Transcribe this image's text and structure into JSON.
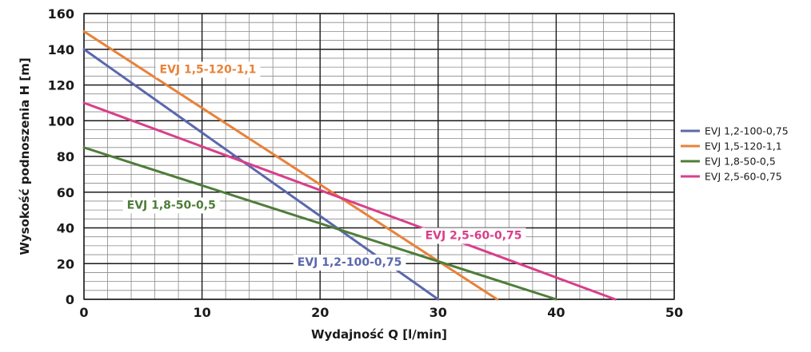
{
  "chart_data": {
    "type": "line",
    "title": "",
    "xlabel": "Wydajność Q [l/min]",
    "ylabel": "Wysokość podnoszenia H [m]",
    "xlim": [
      0,
      50
    ],
    "ylim": [
      0,
      160
    ],
    "x_ticks": [
      0,
      10,
      20,
      30,
      40,
      50
    ],
    "y_ticks": [
      0,
      20,
      40,
      60,
      80,
      100,
      120,
      140,
      160
    ],
    "x_minor_step": 2,
    "y_minor_step": 5,
    "grid": true,
    "legend_position": "right",
    "series": [
      {
        "name": "EVJ 1,2-100-0,75",
        "color": "#5b68ad",
        "x": [
          0,
          30
        ],
        "y": [
          140,
          0
        ],
        "annotation": {
          "text": "EVJ 1,2-100-0,75",
          "at": [
            22.5,
            21
          ]
        }
      },
      {
        "name": "EVJ 1,5-120-1,1",
        "color": "#e8823a",
        "x": [
          0,
          35
        ],
        "y": [
          150,
          0
        ],
        "annotation": {
          "text": "EVJ 1,5-120-1,1",
          "at": [
            10.5,
            129
          ]
        }
      },
      {
        "name": "EVJ 1,8-50-0,5",
        "color": "#4f7d3a",
        "x": [
          0,
          40
        ],
        "y": [
          85,
          0
        ],
        "annotation": {
          "text": "EVJ 1,8-50-0,5",
          "at": [
            7.4,
            53
          ]
        }
      },
      {
        "name": "EVJ 2,5-60-0,75",
        "color": "#d83f8a",
        "x": [
          0,
          45
        ],
        "y": [
          110,
          0
        ],
        "annotation": {
          "text": "EVJ 2,5-60-0,75",
          "at": [
            33,
            36
          ]
        }
      }
    ]
  }
}
